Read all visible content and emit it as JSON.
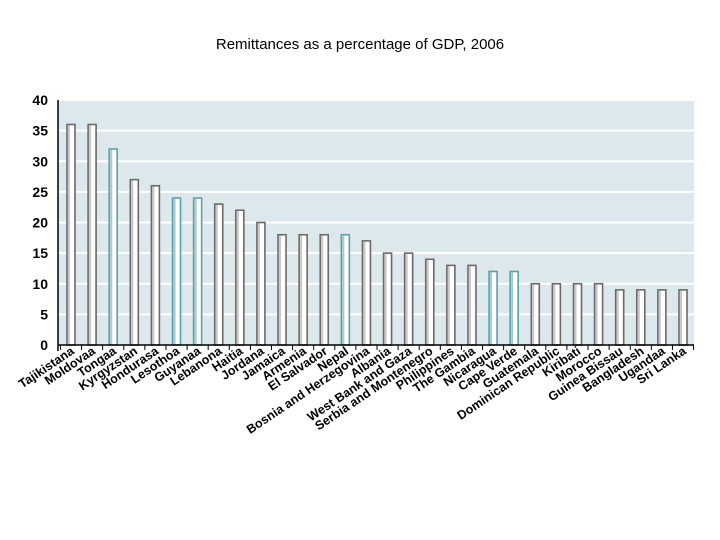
{
  "slide": {
    "title": "Remittances as a percentage of GDP, 2006"
  },
  "colors": {
    "plot_background": "#dde8ec",
    "gridline": "#ffffff",
    "axis": "#000000",
    "bar_fill": "#ffffff",
    "bar_stroke_dark": "#6a6a6a",
    "bar_stroke_accent": "#5aa0a8"
  },
  "chart_data": {
    "type": "bar",
    "title": "Remittances as a percentage of GDP, 2006",
    "xlabel": "",
    "ylabel": "",
    "ylim": [
      0,
      40
    ],
    "yticks": [
      0,
      5,
      10,
      15,
      20,
      25,
      30,
      35,
      40
    ],
    "grid": true,
    "categories": [
      "Tajikistana",
      "Moldovaa",
      "Tongaa",
      "Kyrgyzstan",
      "Hondurasa",
      "Lesothoa",
      "Guyanaa",
      "Lebanona",
      "Haitia",
      "Jordana",
      "Jamaica",
      "Armenia",
      "El Salvador",
      "Nepal",
      "Bosnia and Herzegovina",
      "Albania",
      "West Bank and Gaza",
      "Serbia and Montenegro",
      "Philippines",
      "The Gambia",
      "Nicaragua",
      "Cape Verde",
      "Guatemala",
      "Dominican Republic",
      "Kiribati",
      "Morocco",
      "Guinea Bissau",
      "Bangladesh",
      "Ugandaa",
      "Sri Lanka"
    ],
    "values": [
      36,
      36,
      32,
      27,
      26,
      24,
      24,
      23,
      22,
      20,
      18,
      18,
      18,
      18,
      17,
      15,
      15,
      14,
      13,
      13,
      12,
      12,
      10,
      10,
      10,
      10,
      9,
      9,
      9,
      9
    ],
    "highlighted": [
      false,
      false,
      true,
      false,
      false,
      true,
      true,
      false,
      false,
      false,
      false,
      false,
      false,
      true,
      false,
      false,
      false,
      false,
      false,
      false,
      true,
      true,
      false,
      false,
      false,
      false,
      false,
      false,
      false,
      false
    ]
  }
}
